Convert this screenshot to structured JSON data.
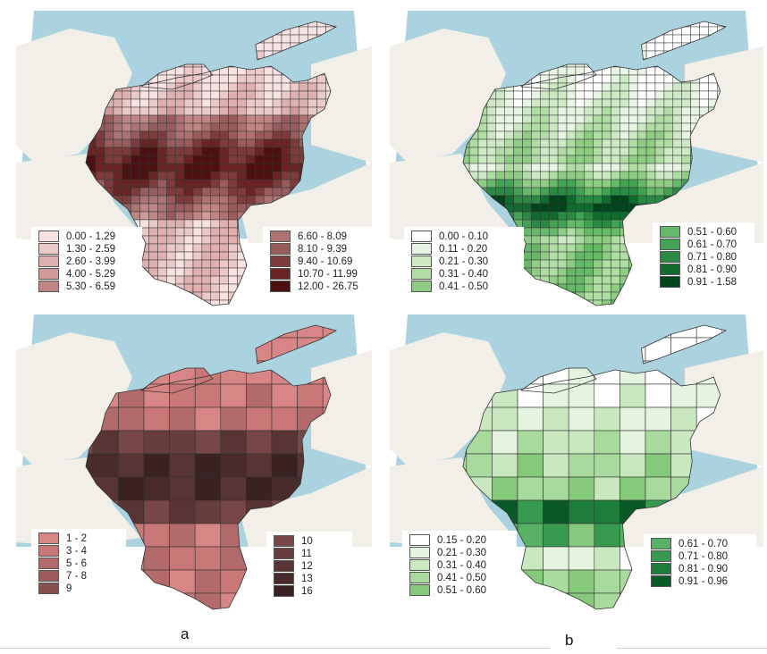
{
  "captions": {
    "a": "a",
    "b": "b"
  },
  "colors": {
    "water": "#aad3df",
    "land": "#f2efe9",
    "border": "#333333"
  },
  "panels": [
    {
      "id": "top-left",
      "grid": true,
      "legend_left": [
        {
          "label": "0.00 - 1.29",
          "color": "#f7e2e2"
        },
        {
          "label": "1.30 - 2.59",
          "color": "#ebc9c9"
        },
        {
          "label": "2.60 - 3.99",
          "color": "#deb0b0"
        },
        {
          "label": "4.00 - 5.29",
          "color": "#d09a9a"
        },
        {
          "label": "5.30 - 6.59",
          "color": "#c08585"
        }
      ],
      "legend_right": [
        {
          "label": "6.60 - 8.09",
          "color": "#ad7272"
        },
        {
          "label": "8.10 - 9.39",
          "color": "#985c5c"
        },
        {
          "label": "9.40 - 10.69",
          "color": "#7e3b3b"
        },
        {
          "label": "10.70 - 11.99",
          "color": "#6a2424"
        },
        {
          "label": "12.00 - 26.75",
          "color": "#4d0f0f"
        }
      ]
    },
    {
      "id": "top-right",
      "grid": true,
      "legend_left": [
        {
          "label": "0.00 - 0.10",
          "color": "#ffffff"
        },
        {
          "label": "0.11 - 0.20",
          "color": "#e8f5e4"
        },
        {
          "label": "0.21 - 0.30",
          "color": "#cdeac5"
        },
        {
          "label": "0.31 - 0.40",
          "color": "#b0dda4"
        },
        {
          "label": "0.41 - 0.50",
          "color": "#8fcd85"
        }
      ],
      "legend_right": [
        {
          "label": "0.51 - 0.60",
          "color": "#67b96a"
        },
        {
          "label": "0.61 - 0.70",
          "color": "#43a355"
        },
        {
          "label": "0.71 - 0.80",
          "color": "#2a8a43"
        },
        {
          "label": "0.81 - 0.90",
          "color": "#106c2e"
        },
        {
          "label": "0.91 - 1.58",
          "color": "#00441b"
        }
      ]
    },
    {
      "id": "bottom-left",
      "grid": false,
      "legend_left": [
        {
          "label": "1 - 2",
          "color": "#d88585"
        },
        {
          "label": "3 - 4",
          "color": "#c97777"
        },
        {
          "label": "5 - 6",
          "color": "#b36a6a"
        },
        {
          "label": "7 - 8",
          "color": "#9c5c5c"
        },
        {
          "label": "9",
          "color": "#875050"
        }
      ],
      "legend_right": [
        {
          "label": "10",
          "color": "#774646"
        },
        {
          "label": "11",
          "color": "#683d3d"
        },
        {
          "label": "12",
          "color": "#593434"
        },
        {
          "label": "13",
          "color": "#4a2b2b"
        },
        {
          "label": "16",
          "color": "#3a2222"
        }
      ]
    },
    {
      "id": "bottom-right",
      "grid": false,
      "legend_left": [
        {
          "label": "0.15 - 0.20",
          "color": "#ffffff"
        },
        {
          "label": "0.21 - 0.30",
          "color": "#e4f4df"
        },
        {
          "label": "0.31 - 0.40",
          "color": "#c9e8c0"
        },
        {
          "label": "0.41 - 0.50",
          "color": "#a9da9d"
        },
        {
          "label": "0.51 - 0.60",
          "color": "#85c97b"
        }
      ],
      "legend_right": [
        {
          "label": "0.61 - 0.70",
          "color": "#59b165"
        },
        {
          "label": "0.71 - 0.80",
          "color": "#379a4f"
        },
        {
          "label": "0.81 - 0.90",
          "color": "#1d7d3b"
        },
        {
          "label": "0.91 - 0.96",
          "color": "#0a5a27"
        }
      ]
    }
  ]
}
